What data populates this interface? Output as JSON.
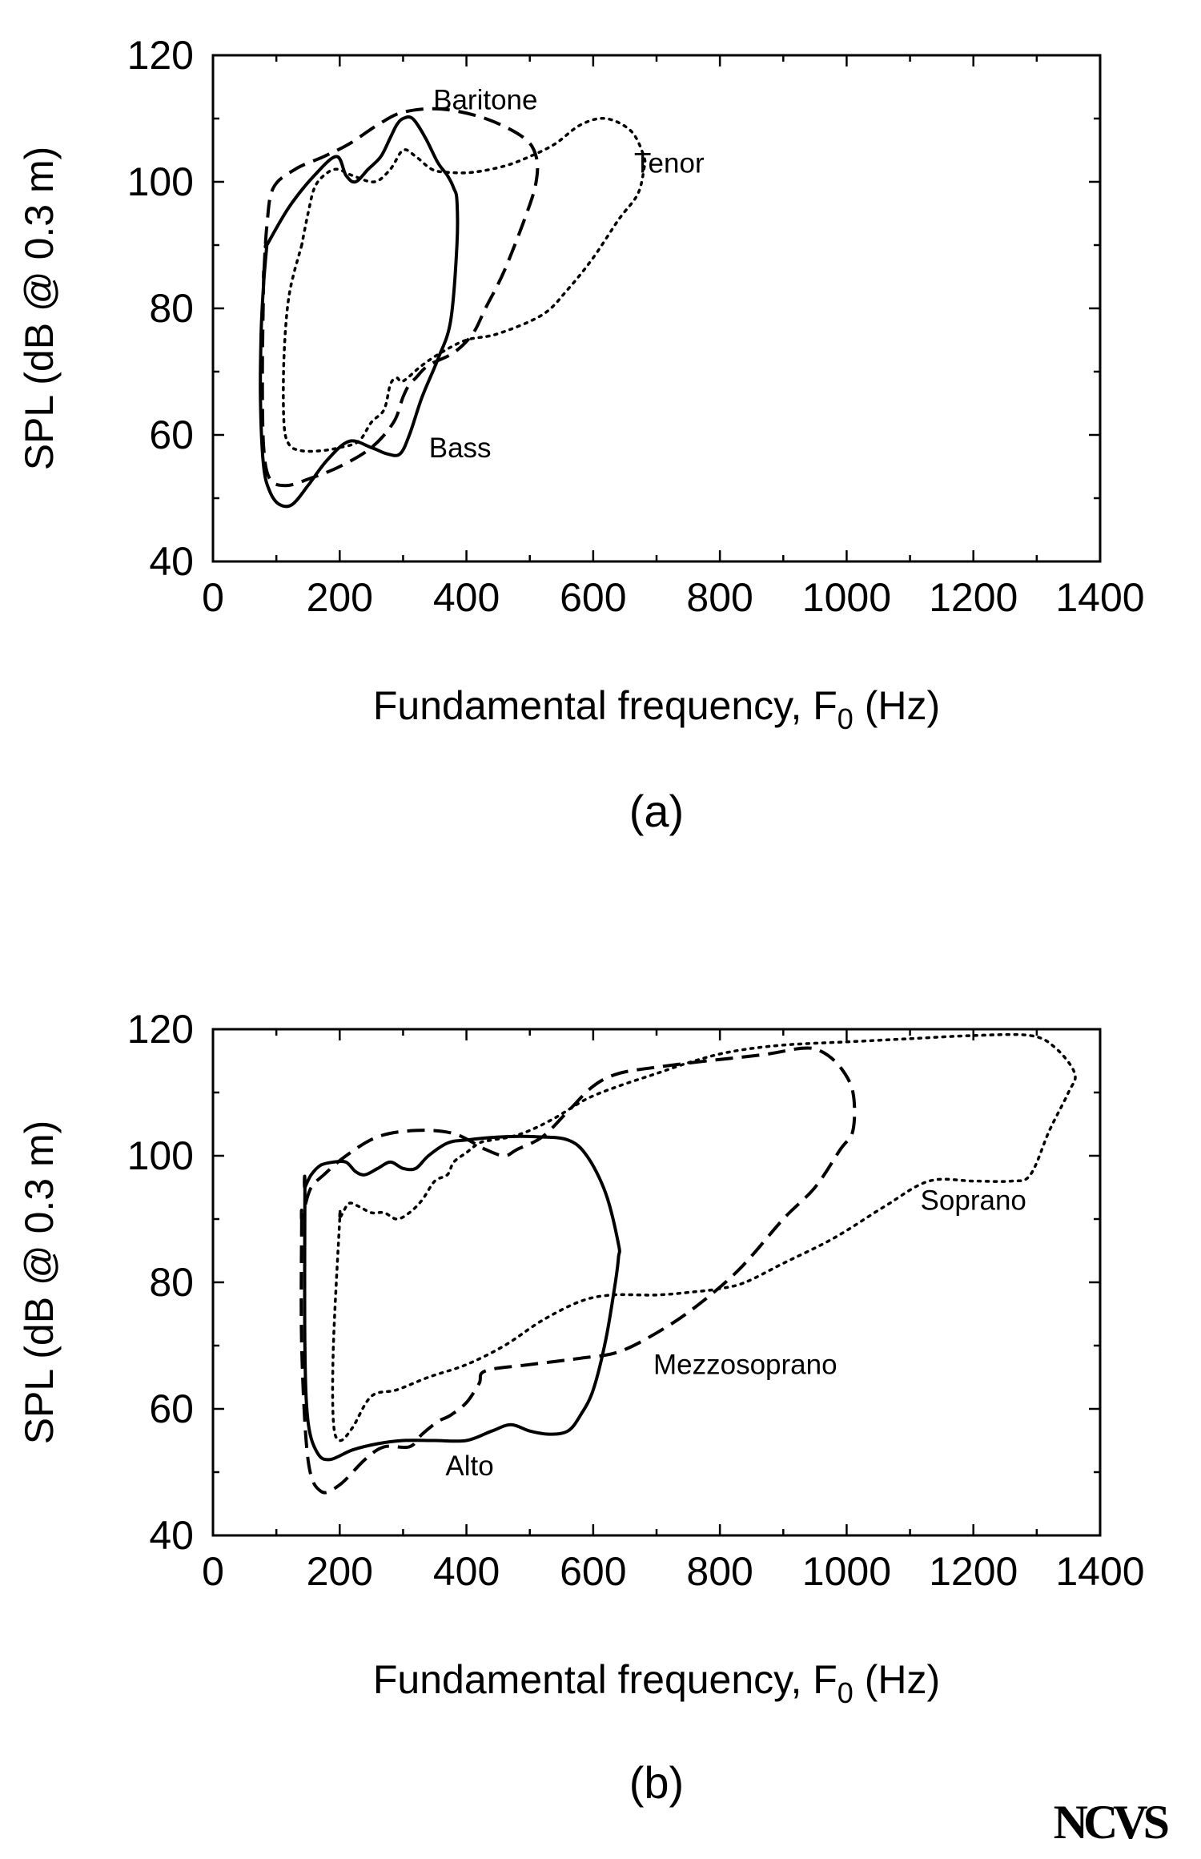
{
  "chart_data": [
    {
      "type": "line",
      "panel_label": "(a)",
      "xlabel_main": "Fundamental frequency, F",
      "xlabel_sub": "0",
      "xlabel_tail": " (Hz)",
      "ylabel": "SPL (dB @ 0.3 m)",
      "xlim": [
        0,
        1400
      ],
      "ylim": [
        40,
        120
      ],
      "xticks": [
        "0",
        "200",
        "400",
        "600",
        "800",
        "1000",
        "1200",
        "1400"
      ],
      "yticks": [
        "40",
        "60",
        "80",
        "100",
        "120"
      ],
      "grid": false,
      "series": [
        {
          "name": "Bass",
          "style": "solid",
          "label_at": [
            390,
            58
          ],
          "x": [
            85,
            80,
            76,
            75,
            80,
            90,
            105,
            125,
            150,
            180,
            215,
            250,
            275,
            295,
            310,
            330,
            355,
            375,
            385,
            385,
            380,
            370,
            355,
            335,
            315,
            300,
            290,
            280,
            265,
            245,
            225,
            210,
            195,
            160,
            120,
            85
          ],
          "y": [
            90,
            84,
            76,
            65,
            55,
            51,
            49,
            49,
            52,
            56,
            59,
            58,
            57,
            57,
            60,
            66,
            72,
            78,
            90,
            97,
            99,
            101,
            103,
            107,
            110,
            110,
            109,
            107,
            104,
            102,
            100,
            101,
            104,
            101,
            96,
            90
          ]
        },
        {
          "name": "Baritone",
          "style": "dashed",
          "label_at": [
            430,
            113
          ],
          "x": [
            80,
            78,
            80,
            90,
            115,
            150,
            200,
            250,
            285,
            300,
            310,
            320,
            340,
            380,
            410,
            430,
            460,
            495,
            510,
            510,
            490,
            430,
            360,
            300,
            260,
            215,
            175,
            130,
            95,
            85,
            80
          ],
          "y": [
            85,
            70,
            58,
            53,
            52,
            53,
            55,
            58,
            62,
            66,
            68,
            69,
            71,
            73,
            76,
            80,
            86,
            95,
            100,
            104,
            107,
            110,
            111.5,
            111,
            109,
            106,
            104,
            102,
            99,
            93,
            85
          ]
        },
        {
          "name": "Tenor",
          "style": "dotted",
          "label_at": [
            720,
            103
          ],
          "x": [
            140,
            120,
            112,
            112,
            120,
            140,
            170,
            200,
            230,
            250,
            270,
            280,
            290,
            300,
            330,
            360,
            400,
            450,
            520,
            560,
            600,
            640,
            670,
            680,
            680,
            660,
            620,
            580,
            540,
            500,
            460,
            410,
            370,
            345,
            320,
            300,
            280,
            255,
            220,
            195,
            175,
            160,
            150,
            140
          ],
          "y": [
            90,
            82,
            72,
            62,
            58.5,
            57.5,
            57.5,
            58,
            59,
            62,
            64,
            68,
            69,
            68.5,
            71,
            73,
            75,
            76,
            79,
            83,
            88,
            94,
            98,
            102,
            104,
            108,
            110,
            109,
            106,
            104,
            102.5,
            101.5,
            101.5,
            102,
            104,
            105,
            102,
            100,
            101,
            102,
            101,
            99,
            95,
            90
          ]
        }
      ]
    },
    {
      "type": "line",
      "panel_label": "(b)",
      "xlabel_main": "Fundamental frequency, F",
      "xlabel_sub": "0",
      "xlabel_tail": " (Hz)",
      "ylabel": "SPL (dB @ 0.3 m)",
      "xlim": [
        0,
        1400
      ],
      "ylim": [
        40,
        120
      ],
      "xticks": [
        "0",
        "200",
        "400",
        "600",
        "800",
        "1000",
        "1200",
        "1400"
      ],
      "yticks": [
        "40",
        "60",
        "80",
        "100",
        "120"
      ],
      "grid": false,
      "series": [
        {
          "name": "Alto",
          "style": "solid",
          "label_at": [
            405,
            51
          ],
          "x": [
            145,
            145,
            150,
            165,
            185,
            220,
            260,
            300,
            350,
            400,
            440,
            470,
            500,
            530,
            560,
            580,
            600,
            620,
            635,
            640,
            640,
            620,
            590,
            560,
            510,
            460,
            400,
            370,
            340,
            320,
            300,
            280,
            260,
            240,
            225,
            210,
            190,
            170,
            155,
            145
          ],
          "y": [
            95,
            70,
            58,
            53,
            52,
            53.5,
            54.5,
            55,
            55,
            55,
            56.5,
            57.5,
            56.5,
            56,
            56.5,
            59,
            63,
            71,
            80,
            84,
            86,
            94,
            100,
            102.5,
            103,
            103,
            102.5,
            102,
            100,
            98,
            98,
            99,
            98,
            97,
            97.5,
            99,
            99,
            98.5,
            97,
            95
          ]
        },
        {
          "name": "Mezzosoprano",
          "style": "dashed",
          "label_at": [
            840,
            67
          ],
          "x": [
            140,
            140,
            150,
            170,
            200,
            240,
            270,
            310,
            330,
            355,
            375,
            400,
            420,
            430,
            500,
            580,
            640,
            700,
            760,
            830,
            900,
            950,
            990,
            1010,
            1010,
            990,
            960,
            930,
            870,
            780,
            700,
            640,
            600,
            560,
            520,
            480,
            460,
            430,
            380,
            320,
            260,
            210,
            175,
            155,
            145,
            140
          ],
          "y": [
            90,
            70,
            52,
            47,
            48,
            52,
            54,
            54,
            56,
            58,
            59,
            61,
            64,
            66,
            67,
            68,
            69,
            72,
            76,
            82,
            90,
            95,
            101,
            104,
            110,
            114,
            116.5,
            117,
            116,
            115,
            114,
            113,
            111,
            107,
            103,
            101,
            100,
            101,
            103.5,
            104,
            103,
            100,
            97,
            95,
            92,
            90
          ]
        },
        {
          "name": "Soprano",
          "style": "dotted",
          "label_at": [
            1200,
            93
          ],
          "x": [
            200,
            190,
            190,
            200,
            220,
            250,
            290,
            340,
            400,
            460,
            520,
            580,
            630,
            700,
            760,
            800,
            840,
            900,
            980,
            1060,
            1130,
            1200,
            1260,
            1290,
            1320,
            1350,
            1360,
            1330,
            1290,
            1200,
            1100,
            1000,
            900,
            820,
            760,
            700,
            640,
            590,
            540,
            500,
            470,
            440,
            420,
            400,
            380,
            370,
            350,
            330,
            310,
            290,
            270,
            250,
            230,
            215,
            205,
            200
          ],
          "y": [
            90,
            70,
            58,
            55,
            57,
            62,
            63,
            65,
            67,
            70,
            74,
            77,
            78,
            78,
            78.5,
            79,
            80,
            83,
            87,
            92,
            96,
            96,
            96,
            97,
            104,
            110,
            113,
            117,
            119,
            119,
            118.5,
            118,
            117.5,
            116.5,
            115,
            113,
            111,
            109,
            106,
            104,
            103,
            102.5,
            102,
            100.5,
            99,
            97,
            96,
            93,
            91,
            90,
            91,
            91,
            92,
            92.5,
            91,
            90
          ]
        }
      ]
    }
  ],
  "logo": {
    "text": "NCVS"
  }
}
